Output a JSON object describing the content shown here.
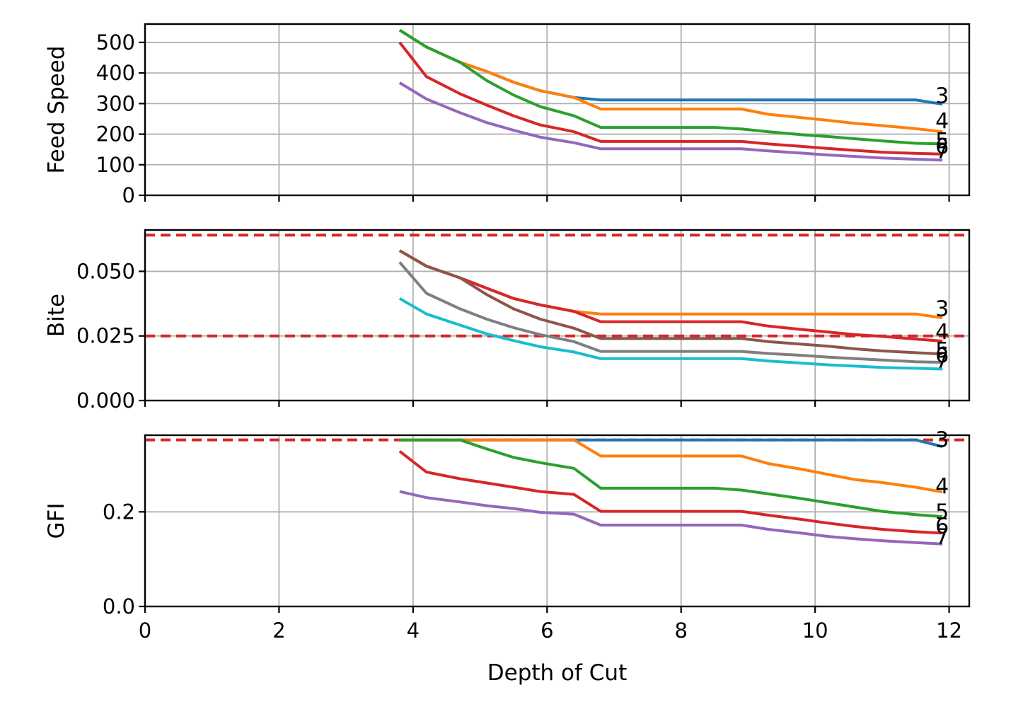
{
  "chart_data": [
    {
      "type": "line",
      "ylabel": "Feed Speed",
      "xlabel": "",
      "xlim": [
        0,
        12.3
      ],
      "ylim": [
        0,
        560
      ],
      "xticks": [
        0,
        2,
        4,
        6,
        8,
        10,
        12
      ],
      "yticks": [
        0,
        100,
        200,
        300,
        400,
        500
      ],
      "show_xtick_labels": false,
      "grid": true,
      "hlines": [],
      "series": [
        {
          "name": "3",
          "color": "#1f77b4",
          "x": [
            3.8,
            4.2,
            4.7,
            5.1,
            5.5,
            5.9,
            6.4,
            6.8,
            8.5,
            9.3,
            11.5,
            11.9
          ],
          "y": [
            540,
            485,
            435,
            405,
            370,
            342,
            320,
            312,
            312,
            312,
            312,
            298
          ]
        },
        {
          "name": "4",
          "color": "#ff7f0e",
          "x": [
            3.8,
            4.2,
            4.7,
            5.1,
            5.5,
            5.9,
            6.4,
            6.8,
            8.9,
            9.3,
            10.2,
            10.6,
            11.0,
            11.5,
            11.9
          ],
          "y": [
            540,
            485,
            435,
            405,
            370,
            342,
            320,
            282,
            282,
            265,
            245,
            235,
            228,
            218,
            208
          ]
        },
        {
          "name": "5",
          "color": "#2ca02c",
          "x": [
            3.8,
            4.2,
            4.7,
            5.1,
            5.5,
            5.9,
            6.4,
            6.8,
            8.5,
            8.9,
            9.3,
            9.8,
            10.2,
            10.6,
            11.0,
            11.5,
            11.9
          ],
          "y": [
            540,
            485,
            435,
            375,
            328,
            290,
            260,
            222,
            222,
            217,
            208,
            198,
            192,
            185,
            178,
            170,
            168
          ]
        },
        {
          "name": "6",
          "color": "#d62728",
          "x": [
            3.8,
            4.2,
            4.7,
            5.1,
            5.5,
            5.9,
            6.4,
            6.8,
            8.9,
            9.3,
            9.8,
            10.2,
            10.6,
            11.0,
            11.5,
            11.9
          ],
          "y": [
            500,
            388,
            332,
            295,
            260,
            230,
            208,
            176,
            176,
            168,
            160,
            153,
            147,
            141,
            137,
            135
          ]
        },
        {
          "name": "7",
          "color": "#9467bd",
          "x": [
            3.8,
            4.2,
            4.7,
            5.1,
            5.5,
            5.9,
            6.4,
            6.8,
            8.9,
            9.3,
            9.8,
            10.2,
            10.6,
            11.0,
            11.5,
            11.9
          ],
          "y": [
            368,
            315,
            270,
            238,
            213,
            190,
            172,
            152,
            152,
            145,
            138,
            132,
            127,
            122,
            118,
            115
          ]
        }
      ],
      "end_labels": [
        {
          "text": "3",
          "y": 325
        },
        {
          "text": "4",
          "y": 243
        },
        {
          "text": "5",
          "y": 178
        },
        {
          "text": "6",
          "y": 160
        },
        {
          "text": "7",
          "y": 145
        }
      ]
    },
    {
      "type": "line",
      "ylabel": "Bite",
      "xlabel": "",
      "xlim": [
        0,
        12.3
      ],
      "ylim": [
        0,
        0.066
      ],
      "xticks": [
        0,
        2,
        4,
        6,
        8,
        10,
        12
      ],
      "yticks": [
        0.0,
        0.025,
        0.05
      ],
      "ytick_labels": [
        "0.000",
        "0.025",
        "0.050"
      ],
      "show_xtick_labels": false,
      "grid": true,
      "hlines": [
        {
          "y": 0.064,
          "color": "#d62728"
        },
        {
          "y": 0.025,
          "color": "#d62728"
        }
      ],
      "series": [
        {
          "name": "3",
          "color": "#ff7f0e",
          "x": [
            3.8,
            4.2,
            4.7,
            5.1,
            5.5,
            5.9,
            6.4,
            6.8,
            8.9,
            11.5,
            11.9
          ],
          "y": [
            0.058,
            0.052,
            0.0475,
            0.0435,
            0.0395,
            0.037,
            0.0345,
            0.0335,
            0.0335,
            0.0335,
            0.032
          ]
        },
        {
          "name": "4",
          "color": "#d62728",
          "x": [
            3.8,
            4.2,
            4.7,
            5.1,
            5.5,
            5.9,
            6.4,
            6.8,
            8.9,
            9.3,
            9.8,
            10.2,
            10.6,
            11.0,
            11.5,
            11.9
          ],
          "y": [
            0.058,
            0.052,
            0.0475,
            0.0435,
            0.0395,
            0.037,
            0.0345,
            0.0305,
            0.0305,
            0.0288,
            0.0275,
            0.0265,
            0.0255,
            0.0248,
            0.0238,
            0.023
          ]
        },
        {
          "name": "5",
          "color": "#8c564b",
          "x": [
            3.8,
            4.2,
            4.7,
            5.1,
            5.5,
            5.9,
            6.4,
            6.8,
            8.9,
            9.3,
            9.8,
            10.2,
            10.6,
            11.0,
            11.5,
            11.9
          ],
          "y": [
            0.058,
            0.052,
            0.0475,
            0.041,
            0.0355,
            0.0315,
            0.028,
            0.024,
            0.024,
            0.0228,
            0.0218,
            0.021,
            0.02,
            0.0192,
            0.0185,
            0.018
          ]
        },
        {
          "name": "6",
          "color": "#7f7f7f",
          "x": [
            3.8,
            4.2,
            4.7,
            5.1,
            5.5,
            5.9,
            6.4,
            6.8,
            8.9,
            9.3,
            9.8,
            10.2,
            10.6,
            11.0,
            11.5,
            11.9
          ],
          "y": [
            0.0535,
            0.0415,
            0.0355,
            0.0315,
            0.0282,
            0.0255,
            0.0228,
            0.019,
            0.019,
            0.0182,
            0.0175,
            0.0168,
            0.0162,
            0.0157,
            0.015,
            0.0148
          ]
        },
        {
          "name": "7",
          "color": "#17becf",
          "x": [
            3.8,
            4.2,
            4.7,
            5.1,
            5.5,
            5.9,
            6.4,
            6.8,
            8.9,
            9.3,
            9.8,
            10.2,
            10.6,
            11.0,
            11.5,
            11.9
          ],
          "y": [
            0.0395,
            0.0335,
            0.0292,
            0.0258,
            0.0232,
            0.0208,
            0.0188,
            0.0162,
            0.0162,
            0.0153,
            0.0145,
            0.0138,
            0.0133,
            0.0128,
            0.0125,
            0.0122
          ]
        }
      ],
      "end_labels": [
        {
          "text": "3",
          "y": 0.0355
        },
        {
          "text": "4",
          "y": 0.0265
        },
        {
          "text": "5",
          "y": 0.0195
        },
        {
          "text": "6",
          "y": 0.0175
        },
        {
          "text": "7",
          "y": 0.0155
        }
      ]
    },
    {
      "type": "line",
      "ylabel": "GFI",
      "xlabel": "Depth of Cut",
      "xlim": [
        0,
        12.3
      ],
      "ylim": [
        0,
        0.362
      ],
      "xticks": [
        0,
        2,
        4,
        6,
        8,
        10,
        12
      ],
      "xtick_labels": [
        "0",
        "2",
        "4",
        "6",
        "8",
        "10",
        "12"
      ],
      "yticks": [
        0.0,
        0.2
      ],
      "ytick_labels": [
        "0.0",
        "0.2"
      ],
      "show_xtick_labels": true,
      "grid": true,
      "hlines": [
        {
          "y": 0.352,
          "color": "#d62728"
        }
      ],
      "series": [
        {
          "name": "3",
          "color": "#1f77b4",
          "x": [
            3.8,
            11.5,
            11.9
          ],
          "y": [
            0.352,
            0.352,
            0.338
          ]
        },
        {
          "name": "4",
          "color": "#ff7f0e",
          "x": [
            3.8,
            6.4,
            6.8,
            8.9,
            9.3,
            9.8,
            10.2,
            10.6,
            11.0,
            11.5,
            11.9
          ],
          "y": [
            0.352,
            0.352,
            0.318,
            0.318,
            0.302,
            0.29,
            0.279,
            0.268,
            0.262,
            0.252,
            0.242
          ]
        },
        {
          "name": "5",
          "color": "#2ca02c",
          "x": [
            3.8,
            4.7,
            5.1,
            5.5,
            5.9,
            6.4,
            6.8,
            8.5,
            8.9,
            9.3,
            9.8,
            10.2,
            10.6,
            11.0,
            11.5,
            11.9
          ],
          "y": [
            0.352,
            0.352,
            0.333,
            0.315,
            0.304,
            0.292,
            0.25,
            0.25,
            0.246,
            0.238,
            0.228,
            0.219,
            0.21,
            0.201,
            0.194,
            0.19
          ]
        },
        {
          "name": "6",
          "color": "#d62728",
          "x": [
            3.8,
            4.2,
            4.7,
            5.1,
            5.5,
            5.9,
            6.4,
            6.8,
            8.9,
            9.3,
            9.8,
            10.2,
            10.6,
            11.0,
            11.5,
            11.9
          ],
          "y": [
            0.328,
            0.284,
            0.27,
            0.261,
            0.252,
            0.243,
            0.237,
            0.201,
            0.201,
            0.193,
            0.184,
            0.176,
            0.169,
            0.163,
            0.158,
            0.155
          ]
        },
        {
          "name": "7",
          "color": "#9467bd",
          "x": [
            3.8,
            4.2,
            4.7,
            5.1,
            5.5,
            5.9,
            6.4,
            6.8,
            8.9,
            9.3,
            9.8,
            10.2,
            10.6,
            11.0,
            11.5,
            11.9
          ],
          "y": [
            0.243,
            0.23,
            0.221,
            0.213,
            0.207,
            0.199,
            0.195,
            0.172,
            0.172,
            0.163,
            0.155,
            0.148,
            0.143,
            0.139,
            0.135,
            0.132
          ]
        }
      ],
      "end_labels": [
        {
          "text": "3",
          "y": 0.352
        },
        {
          "text": "4",
          "y": 0.254
        },
        {
          "text": "5",
          "y": 0.2
        },
        {
          "text": "6",
          "y": 0.17
        },
        {
          "text": "7",
          "y": 0.147
        }
      ]
    }
  ]
}
